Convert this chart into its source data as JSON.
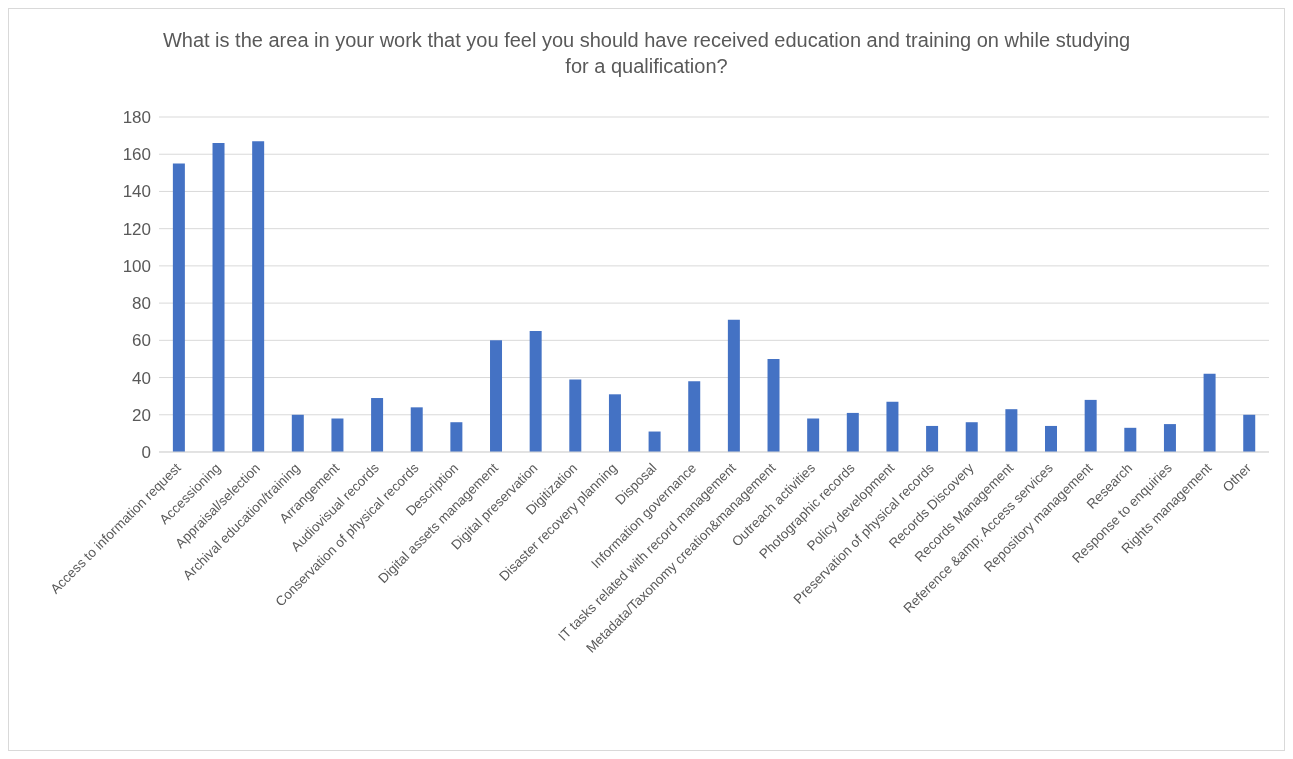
{
  "chart_data": {
    "type": "bar",
    "title": "What is the area in your work that you feel you should have received education and training on while studying for a qualification?",
    "categories": [
      "Access to information request",
      "Accessioning",
      "Appraisal/selection",
      "Archival education/training",
      "Arrangement",
      "Audiovisual records",
      "Conservation of physical records",
      "Description",
      "Digital assets management",
      "Digital preservation",
      "Digitization",
      "Disaster recovery planning",
      "Disposal",
      "Information governance",
      "IT tasks related with record management",
      "Metadata/Taxonomy creation&management",
      "Outreach activities",
      "Photographic records",
      "Policy development",
      "Preservation of physical records",
      "Records Discovery",
      "Records Management",
      "Reference &amp; Access services",
      "Repository management",
      "Research",
      "Response to enquiries",
      "Rights management",
      "Other"
    ],
    "values": [
      155,
      166,
      167,
      20,
      18,
      29,
      24,
      16,
      60,
      65,
      39,
      31,
      11,
      38,
      71,
      50,
      18,
      21,
      27,
      14,
      16,
      23,
      14,
      28,
      13,
      15,
      42,
      20
    ],
    "color": "#4472c4",
    "ylim": [
      0,
      180
    ],
    "yticks": [
      0,
      20,
      40,
      60,
      80,
      100,
      120,
      140,
      160,
      180
    ],
    "grid": "y",
    "legend": false
  }
}
